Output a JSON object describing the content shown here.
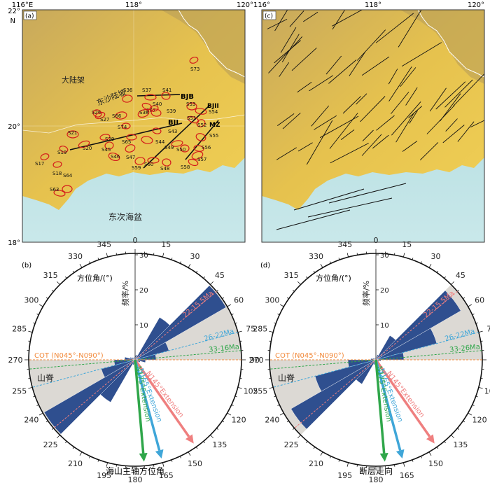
{
  "colors": {
    "sea": "#a9d8dc",
    "shelf": "#e9c44a",
    "slope": "#c9ab62",
    "petal": "#2f4f8f",
    "sector": "#dcd9d4",
    "cot": "#f28a3b",
    "red_arrow": "#ef7f7f",
    "blue_arrow": "#3fa6d8",
    "green_arrow": "#2fa64a",
    "seamount": "#d41b1b"
  },
  "map_axes": {
    "lon_ticks": [
      "116°E",
      "118°",
      "120°"
    ],
    "lon_ticks_c": [
      "116°",
      "118°",
      "120°"
    ],
    "lat_ticks": [
      "22°",
      "20°",
      "18°"
    ],
    "north": "N"
  },
  "panel_a": {
    "label": "(a)",
    "place_labels": {
      "shelf": "大陆架",
      "slope": "东沙陆坡",
      "basin": "东次海盆"
    },
    "lines": {
      "bjb": "BJB",
      "bji": "BJI",
      "bjii": "BJII",
      "mz": "MZ"
    },
    "seamounts": [
      "S73",
      "S36",
      "S37",
      "S41",
      "S67",
      "S38",
      "S40",
      "S53",
      "S54",
      "S26",
      "S27",
      "S66",
      "S74",
      "S39",
      "S51",
      "S52",
      "S29",
      "S21",
      "S43",
      "S55",
      "S20",
      "S45",
      "S65",
      "S44",
      "S19",
      "S47",
      "S49",
      "S50",
      "S56",
      "S46",
      "S17",
      "S59",
      "S60",
      "S48",
      "S58",
      "S57",
      "S18",
      "S64",
      "S63"
    ]
  },
  "panel_c": {
    "label": "(c)"
  },
  "rose_common": {
    "azimuth_ticks": [
      "345",
      "0",
      "15",
      "30",
      "45",
      "60",
      "75",
      "90",
      "105",
      "120",
      "135",
      "150",
      "165",
      "180",
      "195",
      "210",
      "225",
      "240",
      "255",
      "270",
      "285",
      "300",
      "315",
      "330"
    ],
    "radial_ticks": [
      "30",
      "20",
      "10"
    ],
    "az_label": "方位角/(°)",
    "freq_label": "频率/%",
    "cot": "COT (N045°-N090°)",
    "ridge": "山脊",
    "arrow_red": "N145°Extension",
    "arrow_blue": "N165°Extension",
    "arrow_green": "N175°Extension",
    "age_red": "22-15.5Ma",
    "age_blue": "26-22Ma"
  },
  "panel_b": {
    "label": "(b)",
    "age_green": "33-16Ma",
    "xlabel": "海山主轴方位角"
  },
  "panel_d": {
    "label": "(d)",
    "age_green": "33-26Ma",
    "xlabel": "断层走向"
  },
  "chart_data": [
    {
      "type": "rose",
      "panel": "(b)",
      "xlabel": "海山主轴方位角",
      "radial_ticks": [
        10,
        20,
        30
      ],
      "bin_width_deg": 15,
      "bins_deg": [
        0,
        15,
        30,
        45,
        60,
        75,
        90,
        105,
        120,
        135,
        150,
        165
      ],
      "values": [
        1.2,
        1.5,
        14,
        30,
        10,
        6,
        3,
        1.5,
        1,
        0.8,
        0.6,
        0.8
      ],
      "reference_lines_deg": {
        "22-15.5Ma": 50,
        "26-22Ma": 75,
        "33-16Ma": 85,
        "COT (N045°-N090°)": 90
      },
      "arrows_deg": {
        "N145°Extension": 145,
        "N165°Extension": 165,
        "N175°Extension": 175
      }
    },
    {
      "type": "rose",
      "panel": "(d)",
      "xlabel": "断层走向",
      "radial_ticks": [
        10,
        20,
        30
      ],
      "bin_width_deg": 15,
      "bins_deg": [
        0,
        15,
        30,
        45,
        60,
        75,
        90,
        105,
        120,
        135,
        150,
        165
      ],
      "values": [
        0.8,
        1.5,
        8,
        28,
        18,
        8,
        1.5,
        1.0,
        0.8,
        0.6,
        0.5,
        0.6
      ],
      "reference_lines_deg": {
        "22-15.5Ma": 50,
        "26-22Ma": 75,
        "33-26Ma": 85,
        "COT (N045°-N090°)": 90
      },
      "arrows_deg": {
        "N145°Extension": 145,
        "N165°Extension": 165,
        "N175°Extension": 175
      }
    }
  ]
}
